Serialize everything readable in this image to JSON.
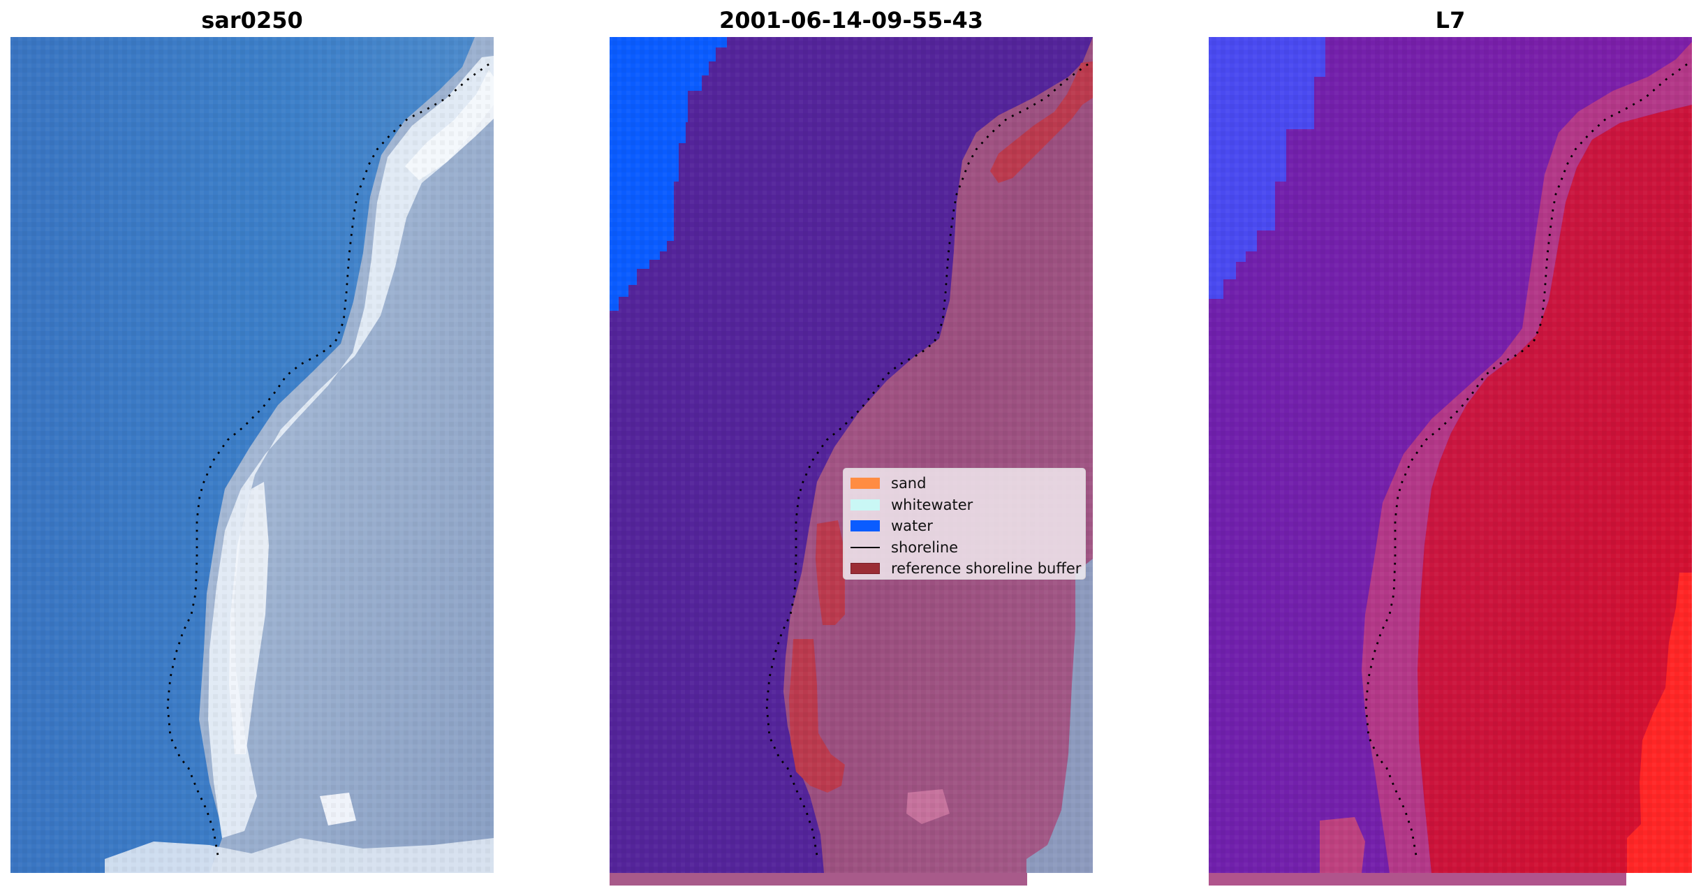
{
  "panels": [
    {
      "title": "sar0250",
      "style": "rgb"
    },
    {
      "title": "2001-06-14-09-55-43",
      "style": "classified"
    },
    {
      "title": "L7",
      "style": "index"
    }
  ],
  "legend": [
    {
      "label": "sand",
      "color": "#ff8c42",
      "kind": "patch"
    },
    {
      "label": "whitewater",
      "color": "#c9f7f5",
      "kind": "patch"
    },
    {
      "label": "water",
      "color": "#0a5cff",
      "kind": "patch"
    },
    {
      "label": "shoreline",
      "color": "#000000",
      "kind": "line"
    },
    {
      "label": "reference shoreline buffer",
      "color": "#9b2d35",
      "kind": "patch"
    }
  ],
  "colors": {
    "ocean_blue": "#3c7cc6",
    "surf_white": "#e4ecf5",
    "land_gray_blue": "#8fa6c8",
    "classified_water": "#54249a",
    "classified_land": "#a4557f",
    "classified_buffer": "#bb3a4e",
    "classified_bright_water": "#0a5cff",
    "index_water": "#7a1fb0",
    "index_land": "#cc1438",
    "index_strong_land": "#ff2626",
    "index_bright": "#4a4af0",
    "shoreline": "#000000"
  }
}
